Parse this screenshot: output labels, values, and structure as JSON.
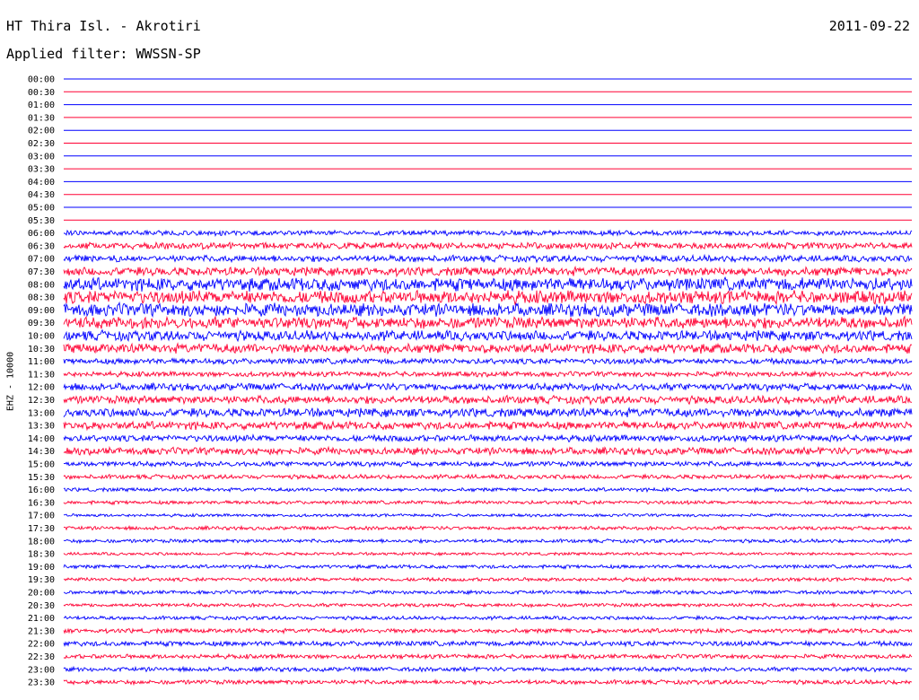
{
  "header": {
    "title": "HT Thira Isl. - Akrotiri",
    "date": "2011-09-22",
    "filter": "Applied filter: WWSSN-SP",
    "channel_label": "EHZ - 10000"
  },
  "colors": {
    "blue": "#0000ff",
    "red": "#ff0033",
    "text": "#000000",
    "background": "#ffffff"
  },
  "chart_data": {
    "type": "line",
    "title": "HT Thira Isl. - Akrotiri",
    "subtitle": "Applied filter: WWSSN-SP",
    "ylabel": "EHZ - 10000",
    "xlabel": "",
    "grid": false,
    "legend": "none",
    "note": "helicorder: one trace per 30-minute row, alternating blue/red",
    "rows": [
      {
        "time": "00:00",
        "amplitude": 0.0
      },
      {
        "time": "00:30",
        "amplitude": 0.0
      },
      {
        "time": "01:00",
        "amplitude": 0.0
      },
      {
        "time": "01:30",
        "amplitude": 0.0
      },
      {
        "time": "02:00",
        "amplitude": 0.0
      },
      {
        "time": "02:30",
        "amplitude": 0.0
      },
      {
        "time": "03:00",
        "amplitude": 0.0
      },
      {
        "time": "03:30",
        "amplitude": 0.0
      },
      {
        "time": "04:00",
        "amplitude": 0.0
      },
      {
        "time": "04:30",
        "amplitude": 0.0
      },
      {
        "time": "05:00",
        "amplitude": 0.0
      },
      {
        "time": "05:30",
        "amplitude": 0.0
      },
      {
        "time": "06:00",
        "amplitude": 0.35
      },
      {
        "time": "06:30",
        "amplitude": 0.45
      },
      {
        "time": "07:00",
        "amplitude": 0.45
      },
      {
        "time": "07:30",
        "amplitude": 0.6
      },
      {
        "time": "08:00",
        "amplitude": 0.9
      },
      {
        "time": "08:30",
        "amplitude": 0.9
      },
      {
        "time": "09:00",
        "amplitude": 0.9
      },
      {
        "time": "09:30",
        "amplitude": 0.8
      },
      {
        "time": "10:00",
        "amplitude": 0.7
      },
      {
        "time": "10:30",
        "amplitude": 0.65
      },
      {
        "time": "11:00",
        "amplitude": 0.4
      },
      {
        "time": "11:30",
        "amplitude": 0.35
      },
      {
        "time": "12:00",
        "amplitude": 0.5
      },
      {
        "time": "12:30",
        "amplitude": 0.55
      },
      {
        "time": "13:00",
        "amplitude": 0.6
      },
      {
        "time": "13:30",
        "amplitude": 0.55
      },
      {
        "time": "14:00",
        "amplitude": 0.45
      },
      {
        "time": "14:30",
        "amplitude": 0.5
      },
      {
        "time": "15:00",
        "amplitude": 0.35
      },
      {
        "time": "15:30",
        "amplitude": 0.3
      },
      {
        "time": "16:00",
        "amplitude": 0.25
      },
      {
        "time": "16:30",
        "amplitude": 0.25
      },
      {
        "time": "17:00",
        "amplitude": 0.2
      },
      {
        "time": "17:30",
        "amplitude": 0.25
      },
      {
        "time": "18:00",
        "amplitude": 0.25
      },
      {
        "time": "18:30",
        "amplitude": 0.2
      },
      {
        "time": "19:00",
        "amplitude": 0.25
      },
      {
        "time": "19:30",
        "amplitude": 0.25
      },
      {
        "time": "20:00",
        "amplitude": 0.25
      },
      {
        "time": "20:30",
        "amplitude": 0.25
      },
      {
        "time": "21:00",
        "amplitude": 0.25
      },
      {
        "time": "21:30",
        "amplitude": 0.3
      },
      {
        "time": "22:00",
        "amplitude": 0.35
      },
      {
        "time": "22:30",
        "amplitude": 0.3
      },
      {
        "time": "23:00",
        "amplitude": 0.3
      },
      {
        "time": "23:30",
        "amplitude": 0.3
      }
    ]
  }
}
